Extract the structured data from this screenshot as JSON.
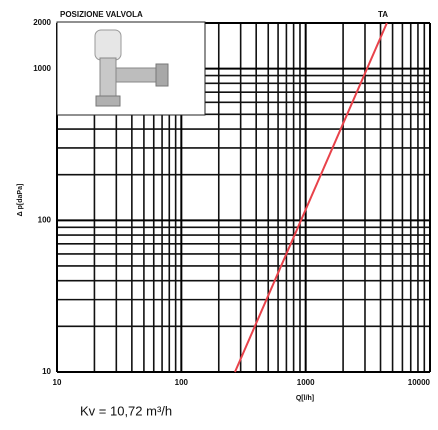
{
  "chart_data": {
    "type": "line",
    "title": "POSIZIONE VALVOLA",
    "x_label": "Q[l/h]",
    "y_label": "Δ p[daPa]",
    "annotation": "TA",
    "footnote": "Kv = 10,72 m³/h",
    "x_log": true,
    "y_log": true,
    "grid": true,
    "xlim": [
      10,
      10000
    ],
    "ylim": [
      10,
      2000
    ],
    "xticks": [
      10,
      100,
      1000,
      10000
    ],
    "yticks": [
      10,
      100,
      1000,
      2000
    ],
    "x_minor_ticks": [
      20,
      30,
      40,
      50,
      60,
      70,
      80,
      90,
      200,
      300,
      400,
      500,
      600,
      700,
      800,
      900,
      2000,
      3000,
      4000,
      5000,
      6000,
      7000,
      8000,
      9000
    ],
    "y_minor_ticks": [
      20,
      30,
      40,
      50,
      60,
      70,
      80,
      90,
      200,
      300,
      400,
      500,
      600,
      700,
      800,
      900
    ],
    "series": [
      {
        "name": "TA",
        "color": "#e8424a",
        "x": [
          270,
          4500
        ],
        "values": [
          10,
          2000
        ]
      }
    ]
  }
}
